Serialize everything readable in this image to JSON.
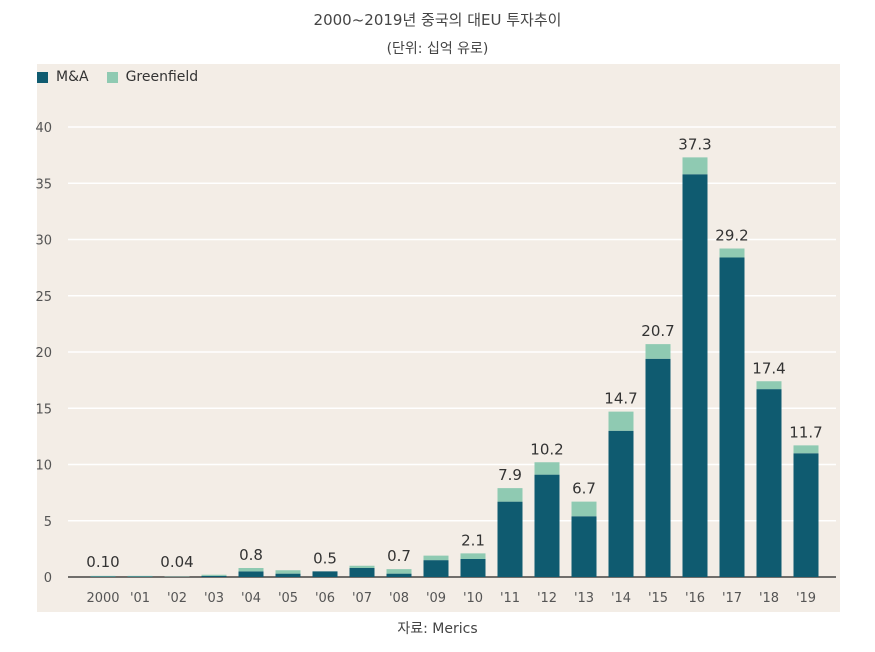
{
  "chart_data": {
    "type": "bar",
    "stacked": true,
    "title": "2000~2019년 중국의 대EU 투자추이",
    "subtitle": "(단위: 십억 유로)",
    "source": "자료: Merics",
    "categories": [
      "2000",
      "'01",
      "'02",
      "'03",
      "'04",
      "'05",
      "'06",
      "'07",
      "'08",
      "'09",
      "'10",
      "'11",
      "'12",
      "'13",
      "'14",
      "'15",
      "'16",
      "'17",
      "'18",
      "'19"
    ],
    "series": [
      {
        "name": "M&A",
        "color": "#0f5b70",
        "values": [
          0.05,
          0.05,
          0.02,
          0.1,
          0.5,
          0.3,
          0.5,
          0.8,
          0.3,
          1.5,
          1.6,
          6.7,
          9.1,
          5.4,
          13.0,
          19.4,
          35.8,
          28.4,
          16.7,
          11.0
        ]
      },
      {
        "name": "Greenfield",
        "color": "#8fcab2",
        "values": [
          0.05,
          0.05,
          0.02,
          0.1,
          0.3,
          0.3,
          0.0,
          0.2,
          0.4,
          0.4,
          0.5,
          1.2,
          1.1,
          1.3,
          1.7,
          1.3,
          1.5,
          0.8,
          0.7,
          0.7
        ]
      }
    ],
    "data_labels": [
      {
        "category": "2000",
        "label": "0.10"
      },
      {
        "category": "'02",
        "label": "0.04"
      },
      {
        "category": "'04",
        "label": "0.8"
      },
      {
        "category": "'06",
        "label": "0.5"
      },
      {
        "category": "'08",
        "label": "0.7"
      },
      {
        "category": "'10",
        "label": "2.1"
      },
      {
        "category": "'11",
        "label": "7.9"
      },
      {
        "category": "'12",
        "label": "10.2"
      },
      {
        "category": "'13",
        "label": "6.7"
      },
      {
        "category": "'14",
        "label": "14.7"
      },
      {
        "category": "'15",
        "label": "20.7"
      },
      {
        "category": "'16",
        "label": "37.3"
      },
      {
        "category": "'17",
        "label": "29.2"
      },
      {
        "category": "'18",
        "label": "17.4"
      },
      {
        "category": "'19",
        "label": "11.7"
      }
    ],
    "yticks": [
      0,
      5,
      10,
      15,
      20,
      25,
      30,
      35,
      40
    ],
    "ylim": [
      0,
      40
    ],
    "grid": true,
    "legend_position": "top-left",
    "background": "#f3ede6"
  }
}
